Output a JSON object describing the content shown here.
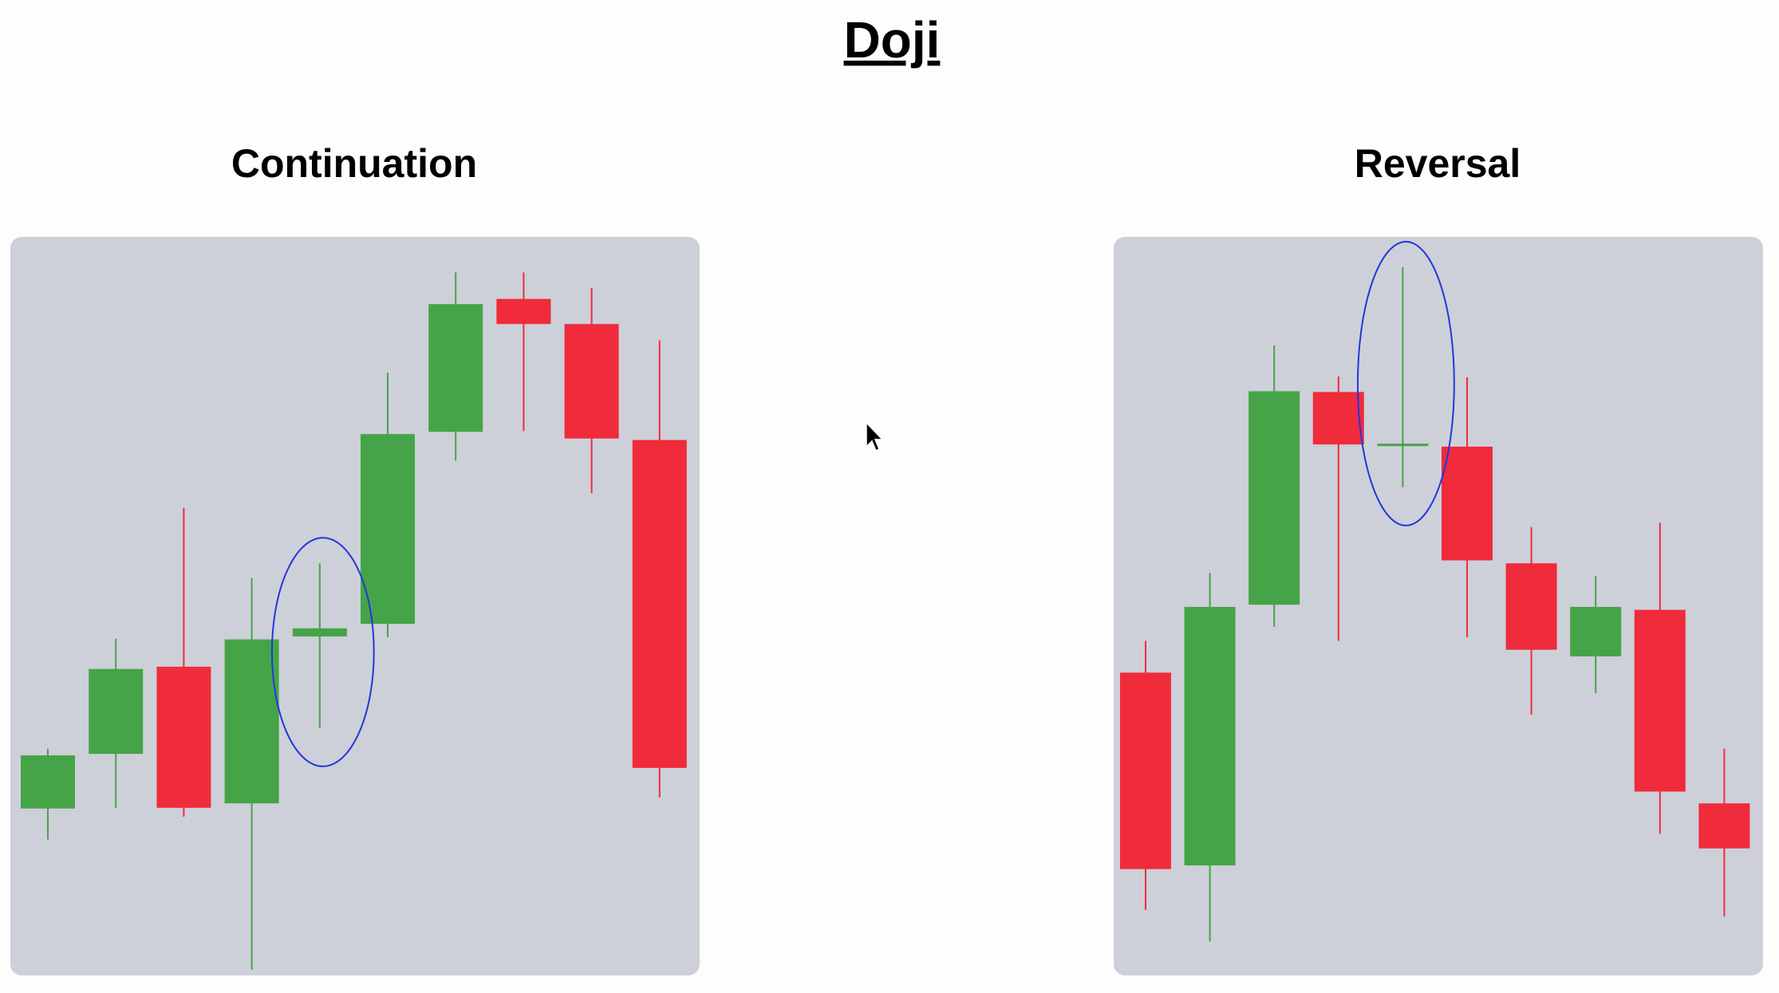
{
  "title": "Doji",
  "chart_data": [
    {
      "type": "candlestick",
      "title": "Continuation",
      "open": [
        22.6,
        30.0,
        41.8,
        23.3,
        45.9,
        47.6,
        73.6,
        91.6,
        88.2,
        72.5
      ],
      "high": [
        30.7,
        45.6,
        63.3,
        53.8,
        55.8,
        81.6,
        95.2,
        95.2,
        93.1,
        86.0
      ],
      "low": [
        18.4,
        22.7,
        21.5,
        0.8,
        33.5,
        45.8,
        69.7,
        73.7,
        65.3,
        24.1
      ],
      "close": [
        29.8,
        41.5,
        22.7,
        45.5,
        47.0,
        73.3,
        90.9,
        88.2,
        72.7,
        28.1
      ],
      "up_color": "#45a447",
      "down_color": "#ef2b3c",
      "highlight": 4,
      "highlight_color": "#2436dc",
      "ylim": [
        0,
        100
      ]
    },
    {
      "type": "candlestick",
      "title": "Reversal",
      "open": [
        41.0,
        14.9,
        50.2,
        79.0,
        71.7,
        71.6,
        55.8,
        43.2,
        49.5,
        23.3
      ],
      "high": [
        45.3,
        54.5,
        85.3,
        81.1,
        95.9,
        81.0,
        60.7,
        54.1,
        61.3,
        30.7
      ],
      "low": [
        8.9,
        4.6,
        47.2,
        45.3,
        66.1,
        45.8,
        35.3,
        38.2,
        19.2,
        8.0
      ],
      "close": [
        14.4,
        49.9,
        79.1,
        71.9,
        72.0,
        56.2,
        44.1,
        49.9,
        24.9,
        17.2
      ],
      "up_color": "#45a447",
      "down_color": "#ef2b3c",
      "highlight": 4,
      "highlight_color": "#2436dc",
      "ylim": [
        0,
        100
      ]
    }
  ]
}
